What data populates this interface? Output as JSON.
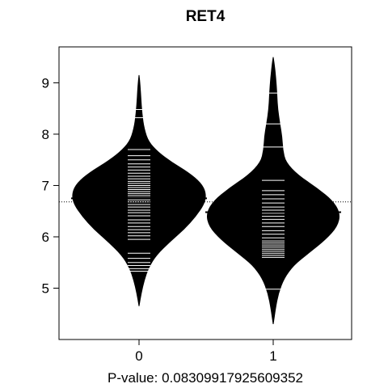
{
  "chart_data": {
    "type": "beanplot",
    "title": "RET4",
    "xlabel": "P-value: 0.08309917925609352",
    "ylabel": "",
    "categories": [
      "0",
      "1"
    ],
    "ylim": [
      4.0,
      9.7
    ],
    "yticks": [
      5,
      6,
      7,
      8,
      9
    ],
    "overall_mean": 6.68,
    "beans": [
      {
        "category": "0",
        "mean": 6.75,
        "min": 4.65,
        "max": 9.15,
        "density": [
          [
            4.65,
            0.0
          ],
          [
            4.9,
            0.03
          ],
          [
            5.15,
            0.07
          ],
          [
            5.4,
            0.13
          ],
          [
            5.65,
            0.24
          ],
          [
            5.9,
            0.42
          ],
          [
            6.15,
            0.62
          ],
          [
            6.4,
            0.78
          ],
          [
            6.65,
            0.9
          ],
          [
            6.85,
            0.92
          ],
          [
            7.05,
            0.85
          ],
          [
            7.25,
            0.68
          ],
          [
            7.45,
            0.45
          ],
          [
            7.65,
            0.26
          ],
          [
            7.85,
            0.13
          ],
          [
            8.1,
            0.07
          ],
          [
            8.4,
            0.04
          ],
          [
            8.7,
            0.025
          ],
          [
            8.95,
            0.015
          ],
          [
            9.15,
            0.0
          ]
        ],
        "observations": [
          5.33,
          5.38,
          5.44,
          5.5,
          5.58,
          5.68,
          5.95,
          6.02,
          6.08,
          6.14,
          6.2,
          6.27,
          6.33,
          6.41,
          6.47,
          6.52,
          6.58,
          6.63,
          6.68,
          6.72,
          6.76,
          6.8,
          6.84,
          6.88,
          6.92,
          6.96,
          7.0,
          7.04,
          7.08,
          7.13,
          7.18,
          7.24,
          7.3,
          7.36,
          7.42,
          7.5,
          7.58,
          7.7,
          8.32,
          8.48
        ]
      },
      {
        "category": "1",
        "mean": 6.48,
        "min": 4.3,
        "max": 9.5,
        "density": [
          [
            4.3,
            0.0
          ],
          [
            4.6,
            0.03
          ],
          [
            4.9,
            0.07
          ],
          [
            5.2,
            0.15
          ],
          [
            5.45,
            0.28
          ],
          [
            5.7,
            0.5
          ],
          [
            5.95,
            0.72
          ],
          [
            6.2,
            0.88
          ],
          [
            6.45,
            0.92
          ],
          [
            6.7,
            0.82
          ],
          [
            6.95,
            0.6
          ],
          [
            7.2,
            0.34
          ],
          [
            7.45,
            0.17
          ],
          [
            7.7,
            0.13
          ],
          [
            7.95,
            0.12
          ],
          [
            8.2,
            0.09
          ],
          [
            8.5,
            0.06
          ],
          [
            8.8,
            0.05
          ],
          [
            9.1,
            0.035
          ],
          [
            9.35,
            0.015
          ],
          [
            9.5,
            0.0
          ]
        ],
        "observations": [
          4.98,
          5.6,
          5.64,
          5.68,
          5.72,
          5.76,
          5.8,
          5.84,
          5.88,
          5.92,
          5.98,
          6.05,
          6.12,
          6.2,
          6.27,
          6.34,
          6.4,
          6.46,
          6.52,
          6.58,
          6.66,
          6.74,
          6.82,
          6.9,
          7.1,
          7.75,
          8.2,
          8.8
        ]
      }
    ],
    "axis_color": "#000000",
    "bean_color": "#000000",
    "observation_color": "#ffffff"
  }
}
